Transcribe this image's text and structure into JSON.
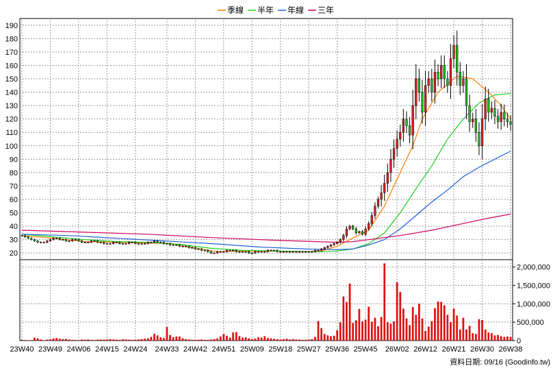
{
  "chart_data": {
    "type": "candlestick",
    "legend": [
      {
        "name": "季線",
        "color": "#ff7f00"
      },
      {
        "name": "半年",
        "color": "#22cc22"
      },
      {
        "name": "年線",
        "color": "#1e5fd8"
      },
      {
        "name": "三年",
        "color": "#d1005f"
      }
    ],
    "price_axis": {
      "ylim": [
        15,
        195
      ],
      "ticks": [
        20,
        30,
        40,
        50,
        60,
        70,
        80,
        90,
        100,
        110,
        120,
        130,
        140,
        150,
        160,
        170,
        180,
        190
      ]
    },
    "volume_axis": {
      "ylim": [
        0,
        2200000
      ],
      "ticks": [
        0,
        500000,
        1000000,
        1500000,
        2000000
      ],
      "tick_labels": [
        "0",
        "500,000",
        "1,000,000",
        "1,500,000",
        "2,000,000"
      ]
    },
    "x_ticks": [
      "23W40",
      "23W49",
      "24W06",
      "24W15",
      "24W24",
      "24W33",
      "24W42",
      "24W51",
      "25W09",
      "25W18",
      "25W27",
      "25W36",
      "25W45",
      "26W02",
      "26W12",
      "26W21",
      "26W30",
      "26W38"
    ],
    "num_weeks": 156,
    "grid": true,
    "up_color": "#dd2222",
    "down_color": "#22bb22",
    "volume_color": "#dd1111",
    "footer": "資料日期: 09/16 (Goodinfo.tw)",
    "closes": [
      33,
      32,
      31,
      30,
      29,
      28,
      28,
      28,
      29,
      30,
      31,
      31,
      30,
      30,
      29,
      29,
      30,
      30,
      29,
      28,
      28,
      28,
      29,
      29,
      28,
      28,
      27,
      27,
      27,
      28,
      28,
      27,
      27,
      27,
      28,
      28,
      27,
      27,
      27,
      27,
      28,
      28,
      29,
      28,
      28,
      27,
      27,
      26,
      26,
      26,
      25,
      25,
      25,
      24,
      24,
      23,
      23,
      22,
      22,
      21,
      20,
      20,
      21,
      21,
      21,
      22,
      22,
      22,
      21,
      21,
      21,
      21,
      20,
      20,
      21,
      21,
      21,
      21,
      22,
      22,
      22,
      21,
      21,
      21,
      21,
      21,
      21,
      21,
      21,
      21,
      21,
      21,
      21,
      22,
      22,
      23,
      24,
      25,
      26,
      27,
      28,
      30,
      33,
      38,
      40,
      38,
      35,
      36,
      34,
      38,
      42,
      48,
      55,
      60,
      65,
      72,
      80,
      90,
      98,
      105,
      110,
      120,
      115,
      108,
      130,
      150,
      140,
      125,
      145,
      150,
      140,
      155,
      150,
      160,
      150,
      145,
      165,
      175,
      155,
      145,
      150,
      130,
      118,
      120,
      110,
      100,
      120,
      135,
      125,
      128,
      122,
      118,
      125,
      120,
      118,
      116
    ],
    "volumes": [
      20000,
      15000,
      10000,
      12000,
      80000,
      60000,
      30000,
      10000,
      25000,
      35000,
      60000,
      70000,
      50000,
      40000,
      45000,
      30000,
      20000,
      15000,
      10000,
      30000,
      25000,
      30000,
      20000,
      15000,
      25000,
      30000,
      25000,
      30000,
      40000,
      30000,
      25000,
      20000,
      35000,
      30000,
      25000,
      20000,
      25000,
      30000,
      40000,
      50000,
      60000,
      100000,
      180000,
      140000,
      90000,
      70000,
      370000,
      150000,
      90000,
      110000,
      110000,
      60000,
      40000,
      30000,
      20000,
      20000,
      25000,
      30000,
      20000,
      20000,
      30000,
      40000,
      60000,
      110000,
      180000,
      130000,
      80000,
      220000,
      230000,
      120000,
      80000,
      90000,
      60000,
      40000,
      50000,
      90000,
      80000,
      120000,
      70000,
      60000,
      50000,
      40000,
      30000,
      40000,
      50000,
      30000,
      40000,
      30000,
      25000,
      20000,
      20000,
      30000,
      40000,
      100000,
      530000,
      340000,
      180000,
      140000,
      120000,
      130000,
      280000,
      500000,
      1200000,
      1050000,
      1550000,
      480000,
      550000,
      860000,
      520000,
      570000,
      920000,
      510000,
      620000,
      390000,
      640000,
      2100000,
      500000,
      460000,
      520000,
      1590000,
      1320000,
      870000,
      600000,
      420000,
      910000,
      700000,
      1000000,
      600000,
      260000,
      380000,
      530000,
      880000,
      1060000,
      1050000,
      960000,
      700000,
      500000,
      870000,
      680000,
      300000,
      620000,
      300000,
      400000,
      200000,
      180000,
      580000,
      560000,
      300000,
      220000,
      200000,
      140000,
      150000,
      120000,
      100000,
      110000,
      100000
    ],
    "ma_season": [
      [
        0,
        33
      ],
      [
        10,
        31
      ],
      [
        20,
        28.5
      ],
      [
        30,
        28
      ],
      [
        40,
        27.5
      ],
      [
        48,
        27
      ],
      [
        52,
        25
      ],
      [
        58,
        22.5
      ],
      [
        62,
        21
      ],
      [
        70,
        21.5
      ],
      [
        80,
        21.5
      ],
      [
        90,
        21
      ],
      [
        95,
        21.5
      ],
      [
        100,
        25
      ],
      [
        104,
        30
      ],
      [
        110,
        37
      ],
      [
        115,
        55
      ],
      [
        120,
        80
      ],
      [
        124,
        100
      ],
      [
        127,
        120
      ],
      [
        132,
        140
      ],
      [
        138,
        152
      ],
      [
        143,
        150
      ],
      [
        148,
        140
      ],
      [
        152,
        130
      ],
      [
        155,
        120
      ]
    ],
    "ma_half": [
      [
        0,
        34
      ],
      [
        10,
        32
      ],
      [
        20,
        30
      ],
      [
        30,
        28.5
      ],
      [
        40,
        28
      ],
      [
        50,
        26.5
      ],
      [
        60,
        23.5
      ],
      [
        70,
        22
      ],
      [
        80,
        21.5
      ],
      [
        95,
        21
      ],
      [
        100,
        21.5
      ],
      [
        105,
        23
      ],
      [
        110,
        27
      ],
      [
        115,
        35
      ],
      [
        120,
        50
      ],
      [
        125,
        68
      ],
      [
        130,
        85
      ],
      [
        135,
        105
      ],
      [
        140,
        120
      ],
      [
        145,
        132
      ],
      [
        150,
        138
      ],
      [
        155,
        139
      ]
    ],
    "ma_year": [
      [
        0,
        34
      ],
      [
        15,
        33
      ],
      [
        30,
        31
      ],
      [
        45,
        29
      ],
      [
        60,
        27
      ],
      [
        75,
        24.5
      ],
      [
        90,
        23
      ],
      [
        100,
        22.5
      ],
      [
        105,
        23
      ],
      [
        110,
        26
      ],
      [
        115,
        30
      ],
      [
        120,
        38
      ],
      [
        125,
        48
      ],
      [
        130,
        58
      ],
      [
        135,
        67
      ],
      [
        140,
        77
      ],
      [
        145,
        84
      ],
      [
        150,
        90
      ],
      [
        155,
        96
      ]
    ],
    "ma_3yr": [
      [
        0,
        37
      ],
      [
        20,
        35.5
      ],
      [
        40,
        34
      ],
      [
        60,
        31.5
      ],
      [
        80,
        29.5
      ],
      [
        100,
        28
      ],
      [
        105,
        28.5
      ],
      [
        110,
        30
      ],
      [
        120,
        33
      ],
      [
        130,
        37
      ],
      [
        140,
        42
      ],
      [
        148,
        46
      ],
      [
        155,
        49
      ]
    ]
  }
}
